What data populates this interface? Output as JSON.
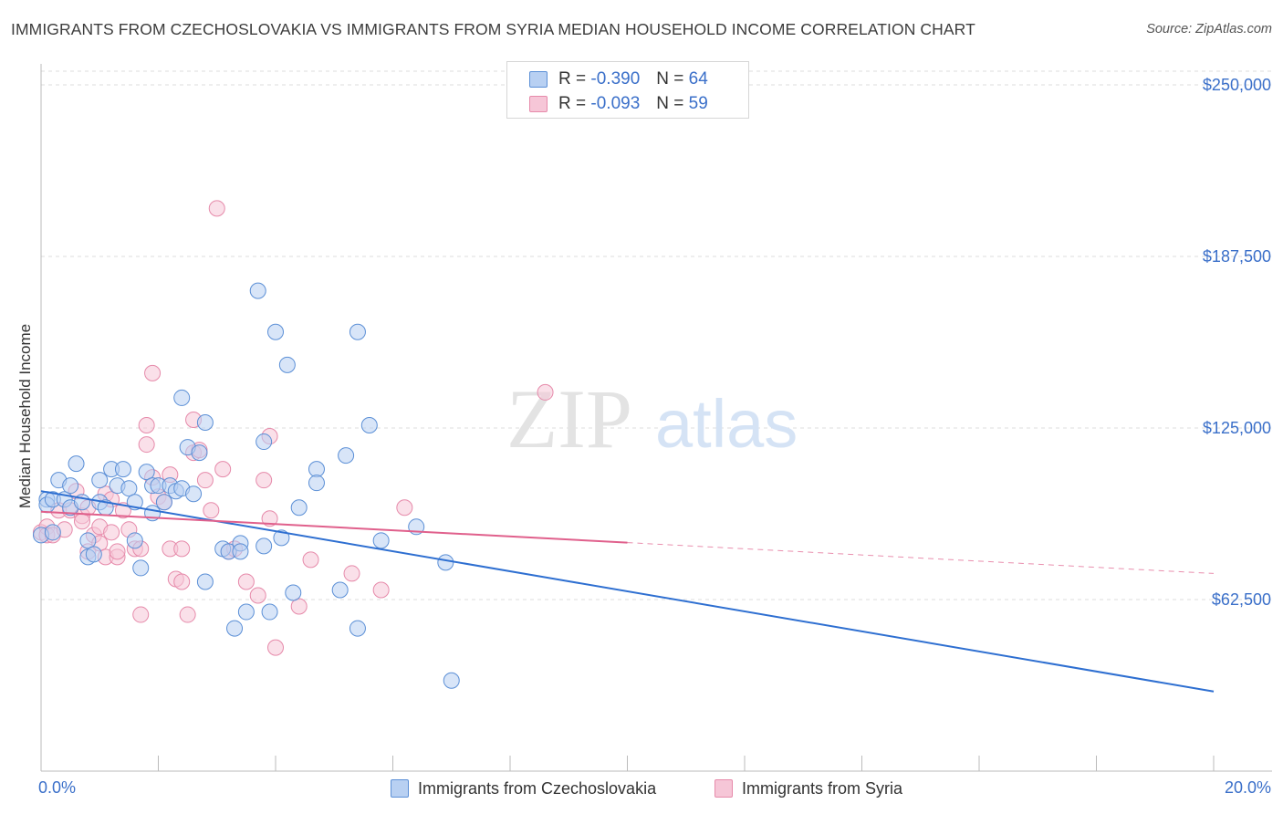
{
  "title": "IMMIGRANTS FROM CZECHOSLOVAKIA VS IMMIGRANTS FROM SYRIA MEDIAN HOUSEHOLD INCOME CORRELATION CHART",
  "source": "Source: ZipAtlas.com",
  "watermark": {
    "zip": "ZIP",
    "atlas": "atlas"
  },
  "legend": {
    "r_label": "R =",
    "n_label": "N =",
    "series1": {
      "r": "-0.390",
      "n": "64"
    },
    "series2": {
      "r": "-0.093",
      "n": "59"
    }
  },
  "colors": {
    "series1_fill": "#b8d0f2",
    "series1_stroke": "#5b8fd6",
    "series1_line": "#2e6fd1",
    "series2_fill": "#f6c6d7",
    "series2_stroke": "#e68aaa",
    "series2_line": "#e0608c",
    "tick_text": "#3a6fc9"
  },
  "chart_data": {
    "type": "scatter",
    "title": "IMMIGRANTS FROM CZECHOSLOVAKIA VS IMMIGRANTS FROM SYRIA MEDIAN HOUSEHOLD INCOME CORRELATION CHART",
    "xlabel": "",
    "ylabel": "Median Household Income",
    "xlim": [
      0,
      0.2
    ],
    "ylim": [
      0,
      255000
    ],
    "x_tick_labels": [
      "0.0%",
      "20.0%"
    ],
    "y_ticks": [
      62500,
      125000,
      187500,
      250000
    ],
    "y_tick_labels": [
      "$62,500",
      "$125,000",
      "$187,500",
      "$250,000"
    ],
    "grid": true,
    "series": [
      {
        "name": "Immigrants from Czechoslovakia",
        "r": -0.39,
        "n": 64,
        "trend": {
          "x": [
            0,
            0.2
          ],
          "y": [
            102000,
            29000
          ]
        },
        "points": [
          [
            0.0,
            86000
          ],
          [
            0.001,
            99000
          ],
          [
            0.001,
            97000
          ],
          [
            0.002,
            99000
          ],
          [
            0.002,
            87000
          ],
          [
            0.003,
            106000
          ],
          [
            0.004,
            99000
          ],
          [
            0.005,
            104000
          ],
          [
            0.005,
            96000
          ],
          [
            0.006,
            112000
          ],
          [
            0.007,
            98000
          ],
          [
            0.008,
            78000
          ],
          [
            0.008,
            84000
          ],
          [
            0.009,
            79000
          ],
          [
            0.01,
            98000
          ],
          [
            0.01,
            106000
          ],
          [
            0.011,
            96000
          ],
          [
            0.012,
            110000
          ],
          [
            0.013,
            104000
          ],
          [
            0.014,
            110000
          ],
          [
            0.015,
            103000
          ],
          [
            0.016,
            98000
          ],
          [
            0.016,
            84000
          ],
          [
            0.017,
            74000
          ],
          [
            0.018,
            109000
          ],
          [
            0.019,
            94000
          ],
          [
            0.019,
            104000
          ],
          [
            0.02,
            104000
          ],
          [
            0.021,
            98000
          ],
          [
            0.022,
            104000
          ],
          [
            0.023,
            102000
          ],
          [
            0.024,
            136000
          ],
          [
            0.024,
            103000
          ],
          [
            0.025,
            118000
          ],
          [
            0.026,
            101000
          ],
          [
            0.027,
            116000
          ],
          [
            0.028,
            127000
          ],
          [
            0.028,
            69000
          ],
          [
            0.031,
            81000
          ],
          [
            0.032,
            80000
          ],
          [
            0.033,
            52000
          ],
          [
            0.034,
            83000
          ],
          [
            0.034,
            80000
          ],
          [
            0.035,
            58000
          ],
          [
            0.037,
            175000
          ],
          [
            0.038,
            120000
          ],
          [
            0.038,
            82000
          ],
          [
            0.039,
            58000
          ],
          [
            0.04,
            160000
          ],
          [
            0.041,
            85000
          ],
          [
            0.042,
            148000
          ],
          [
            0.043,
            65000
          ],
          [
            0.044,
            96000
          ],
          [
            0.047,
            110000
          ],
          [
            0.047,
            105000
          ],
          [
            0.051,
            66000
          ],
          [
            0.052,
            115000
          ],
          [
            0.054,
            52000
          ],
          [
            0.07,
            33000
          ],
          [
            0.069,
            76000
          ],
          [
            0.054,
            160000
          ],
          [
            0.056,
            126000
          ],
          [
            0.058,
            84000
          ],
          [
            0.064,
            89000
          ]
        ]
      },
      {
        "name": "Immigrants from Syria",
        "r": -0.093,
        "n": 59,
        "trend": {
          "x": [
            0,
            0.2
          ],
          "y": [
            94500,
            72000
          ],
          "solid_until": 0.1
        },
        "points": [
          [
            0.0,
            87000
          ],
          [
            0.001,
            89000
          ],
          [
            0.001,
            86000
          ],
          [
            0.002,
            86000
          ],
          [
            0.003,
            95000
          ],
          [
            0.004,
            88000
          ],
          [
            0.005,
            95000
          ],
          [
            0.006,
            102000
          ],
          [
            0.007,
            93000
          ],
          [
            0.007,
            91000
          ],
          [
            0.008,
            96000
          ],
          [
            0.008,
            80000
          ],
          [
            0.009,
            86000
          ],
          [
            0.01,
            89000
          ],
          [
            0.01,
            83000
          ],
          [
            0.011,
            101000
          ],
          [
            0.011,
            78000
          ],
          [
            0.012,
            99000
          ],
          [
            0.012,
            87000
          ],
          [
            0.013,
            78000
          ],
          [
            0.013,
            80000
          ],
          [
            0.014,
            95000
          ],
          [
            0.015,
            88000
          ],
          [
            0.016,
            81000
          ],
          [
            0.017,
            57000
          ],
          [
            0.017,
            81000
          ],
          [
            0.018,
            119000
          ],
          [
            0.018,
            126000
          ],
          [
            0.019,
            107000
          ],
          [
            0.019,
            145000
          ],
          [
            0.02,
            100000
          ],
          [
            0.021,
            98000
          ],
          [
            0.022,
            108000
          ],
          [
            0.022,
            81000
          ],
          [
            0.023,
            70000
          ],
          [
            0.024,
            69000
          ],
          [
            0.024,
            81000
          ],
          [
            0.025,
            57000
          ],
          [
            0.026,
            128000
          ],
          [
            0.026,
            116000
          ],
          [
            0.027,
            117000
          ],
          [
            0.028,
            106000
          ],
          [
            0.029,
            95000
          ],
          [
            0.03,
            205000
          ],
          [
            0.031,
            110000
          ],
          [
            0.032,
            80000
          ],
          [
            0.033,
            81000
          ],
          [
            0.035,
            69000
          ],
          [
            0.037,
            64000
          ],
          [
            0.038,
            106000
          ],
          [
            0.039,
            122000
          ],
          [
            0.039,
            92000
          ],
          [
            0.04,
            45000
          ],
          [
            0.044,
            60000
          ],
          [
            0.046,
            77000
          ],
          [
            0.053,
            72000
          ],
          [
            0.058,
            66000
          ],
          [
            0.062,
            96000
          ],
          [
            0.086,
            138000
          ]
        ]
      }
    ]
  },
  "bottom_legend": {
    "series1_label": "Immigrants from Czechoslovakia",
    "series2_label": "Immigrants from Syria"
  }
}
